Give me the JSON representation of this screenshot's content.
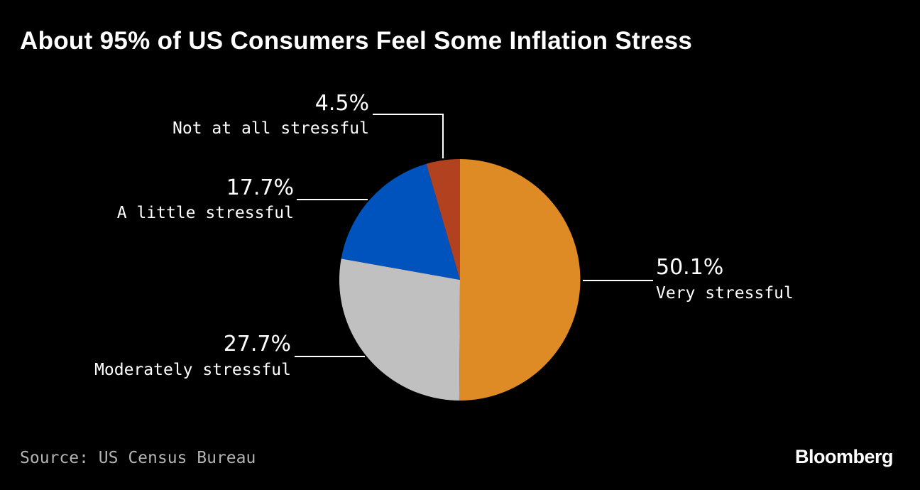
{
  "chart_data": {
    "type": "pie",
    "title": "About 95% of US Consumers Feel Some Inflation Stress",
    "unit": "%",
    "slices": [
      {
        "label": "Very stressful",
        "value": 50.1,
        "display": "50.1%",
        "color": "#de8b25"
      },
      {
        "label": "Moderately stressful",
        "value": 27.7,
        "display": "27.7%",
        "color": "#c0c0c0"
      },
      {
        "label": "A little stressful",
        "value": 17.7,
        "display": "17.7%",
        "color": "#0053bd"
      },
      {
        "label": "Not at all stressful",
        "value": 4.5,
        "display": "4.5%",
        "color": "#b2421f"
      }
    ],
    "start_angle": "12 o'clock",
    "direction": "clockwise"
  },
  "footer": {
    "source": "Source: US Census Bureau",
    "brand": "Bloomberg"
  }
}
